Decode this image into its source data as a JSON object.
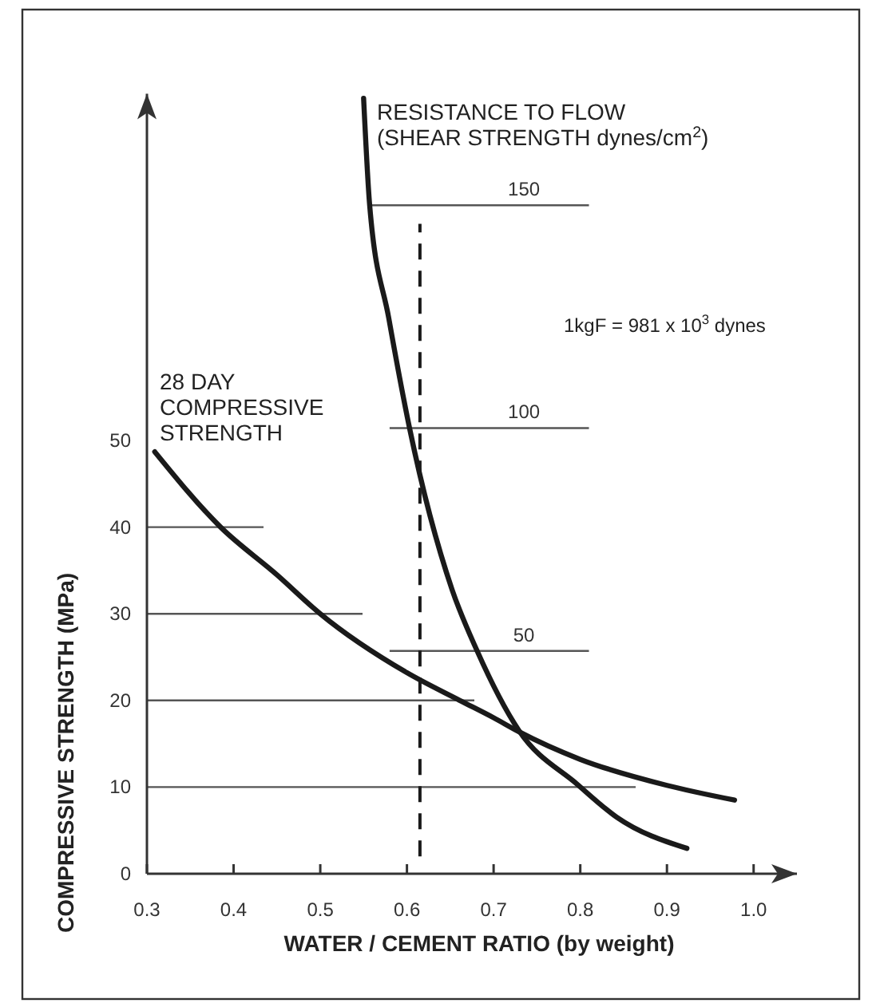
{
  "chart_data": {
    "type": "line",
    "xlabel": "WATER / CEMENT RATIO (by weight)",
    "ylabel": "COMPRESSIVE STRENGTH (MPa)",
    "xlim": [
      0.3,
      1.05
    ],
    "xticks": [
      0.3,
      0.4,
      0.5,
      0.6,
      0.7,
      0.8,
      0.9,
      {
        "value": 1,
        "label": "1.0"
      }
    ],
    "ylim": [
      0,
      90
    ],
    "yticks": [
      0,
      10,
      20,
      30,
      40,
      50
    ],
    "y2lim": [
      0,
      175
    ],
    "y2ticks": [
      50,
      100,
      150
    ],
    "marker": "none",
    "line_style": "solid",
    "series": [
      {
        "name": "28 DAY\nCOMPRESSIVE\nSTRENGTH",
        "color": "#1a1a1a",
        "x": [
          0.309,
          0.385,
          0.45,
          0.5,
          0.6,
          0.661,
          0.7,
          0.729,
          0.8,
          0.9,
          0.978
        ],
        "values": [
          48.7,
          40,
          34.5,
          30,
          23.2,
          20,
          18,
          16.4,
          13.2,
          10.2,
          8.5
        ]
      },
      {
        "name": "RESISTANCE TO FLOW\n(SHEAR STRENGTH  dynes/cm$^{2}$)",
        "color": "#1a1a1a",
        "axis": "y2",
        "x": [
          0.55,
          0.557,
          0.579,
          0.603,
          0.652,
          0.681,
          0.729,
          0.797,
          0.842,
          0.923
        ],
        "values": [
          174,
          150,
          124.7,
          100,
          63.8,
          50,
          32.2,
          20,
          12.7,
          5.7
        ]
      }
    ],
    "ref_lines": [
      {
        "axis": "x",
        "value": 0.615,
        "line_style": "dashed",
        "color": "#1a1a1a"
      },
      {
        "axis": "y",
        "value": 10,
        "color": "#555555"
      },
      {
        "axis": "y",
        "value": 20,
        "color": "#555555"
      },
      {
        "axis": "y",
        "value": 30,
        "color": "#555555"
      },
      {
        "axis": "y",
        "value": 40,
        "color": "#555555"
      },
      {
        "axis": "y2",
        "value": 50,
        "color": "#555555"
      },
      {
        "axis": "y2",
        "value": 100,
        "color": "#555555"
      },
      {
        "axis": "y2",
        "value": 150,
        "color": "#555555"
      }
    ],
    "annotations": [
      "1kgF = 981 x 10$^{3}$ dynes"
    ]
  }
}
